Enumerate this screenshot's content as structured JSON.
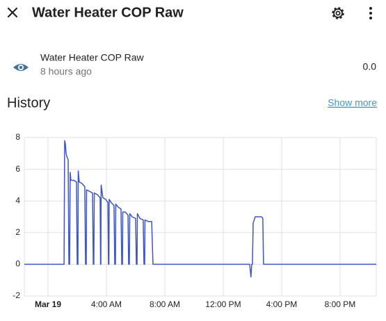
{
  "header": {
    "title": "Water Heater COP Raw"
  },
  "entity": {
    "name": "Water Heater COP Raw",
    "last_changed": "8 hours ago",
    "state": "0.0"
  },
  "history": {
    "title": "History",
    "link": "Show more"
  },
  "chart_data": {
    "type": "line",
    "x": [
      -1.62,
      1.1,
      1.14,
      1.19,
      1.24,
      1.29,
      1.38,
      1.43,
      1.48,
      1.52,
      1.57,
      1.76,
      1.95,
      2.0,
      2.05,
      2.07,
      2.14,
      2.33,
      2.52,
      2.57,
      2.62,
      2.64,
      2.86,
      3.05,
      3.1,
      3.14,
      3.17,
      3.38,
      3.57,
      3.6,
      3.62,
      3.64,
      3.76,
      3.95,
      4.1,
      4.14,
      4.17,
      4.19,
      4.33,
      4.52,
      4.57,
      4.62,
      4.64,
      4.81,
      5.0,
      5.05,
      5.1,
      5.12,
      5.29,
      5.48,
      5.52,
      5.57,
      5.6,
      5.76,
      6.0,
      6.05,
      6.1,
      6.12,
      6.29,
      6.52,
      6.57,
      6.62,
      6.64,
      6.86,
      7.1,
      7.19,
      13.81,
      13.9,
      13.95,
      14.0,
      14.05,
      14.19,
      14.43,
      14.62,
      14.71,
      14.76,
      22.48
    ],
    "series": [
      {
        "color": "#3f55c4",
        "values": [
          0,
          0,
          7.8,
          7.6,
          7.0,
          6.8,
          6.6,
          0,
          0,
          5.8,
          5.3,
          5.3,
          5.2,
          0,
          0,
          5.9,
          5.2,
          5.1,
          4.9,
          0,
          0,
          4.7,
          4.6,
          4.5,
          0,
          0,
          4.5,
          4.4,
          4.2,
          0,
          0,
          5.0,
          4.2,
          4.1,
          3.9,
          0,
          0,
          4.1,
          3.9,
          3.7,
          0,
          0,
          3.8,
          3.6,
          3.5,
          0,
          0,
          3.3,
          3.3,
          3.1,
          0,
          0,
          3.2,
          3.0,
          2.9,
          0,
          0,
          3.2,
          2.9,
          2.8,
          0,
          0,
          2.8,
          2.7,
          2.7,
          0,
          0,
          -0.8,
          0,
          0,
          2.6,
          3.0,
          3.0,
          3.0,
          2.9,
          0,
          0
        ]
      }
    ],
    "xlim": [
      -1.62,
      22.48
    ],
    "xticks": [
      {
        "value": 0,
        "label": "Mar 19"
      },
      {
        "value": 4,
        "label": "4:00 AM"
      },
      {
        "value": 8,
        "label": "8:00 AM"
      },
      {
        "value": 12,
        "label": "12:00 PM"
      },
      {
        "value": 16,
        "label": "4:00 PM"
      },
      {
        "value": 20,
        "label": "8:00 PM"
      }
    ],
    "ylim": [
      -2,
      8
    ],
    "yticks": [
      -2,
      0,
      2,
      4,
      6,
      8
    ],
    "grid": true
  }
}
